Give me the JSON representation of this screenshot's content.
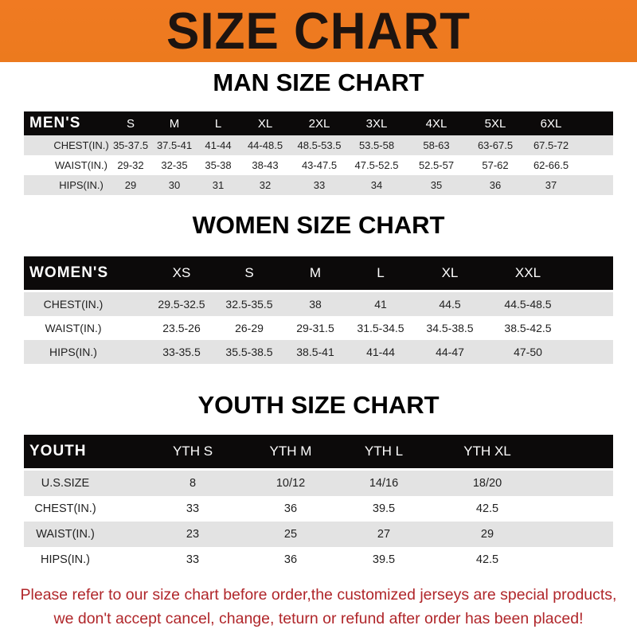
{
  "banner": {
    "title": "SIZE CHART",
    "color": "#ec7a1e"
  },
  "men": {
    "title": "MAN SIZE CHART",
    "header": [
      "MEN'S",
      "S",
      "M",
      "L",
      "XL",
      "2XL",
      "3XL",
      "4XL",
      "5XL",
      "6XL"
    ],
    "rows": [
      [
        "CHEST(IN.)",
        "35-37.5",
        "37.5-41",
        "41-44",
        "44-48.5",
        "48.5-53.5",
        "53.5-58",
        "58-63",
        "63-67.5",
        "67.5-72"
      ],
      [
        "WAIST(IN.)",
        "29-32",
        "32-35",
        "35-38",
        "38-43",
        "43-47.5",
        "47.5-52.5",
        "52.5-57",
        "57-62",
        "62-66.5"
      ],
      [
        "HIPS(IN.)",
        "29",
        "30",
        "31",
        "32",
        "33",
        "34",
        "35",
        "36",
        "37"
      ]
    ]
  },
  "women": {
    "title": "WOMEN SIZE CHART",
    "header": [
      "WOMEN'S",
      "XS",
      "S",
      "M",
      "L",
      "XL",
      "XXL"
    ],
    "rows": [
      [
        "CHEST(IN.)",
        "29.5-32.5",
        "32.5-35.5",
        "38",
        "41",
        "44.5",
        "44.5-48.5"
      ],
      [
        "WAIST(IN.)",
        "23.5-26",
        "26-29",
        "29-31.5",
        "31.5-34.5",
        "34.5-38.5",
        "38.5-42.5"
      ],
      [
        "HIPS(IN.)",
        "33-35.5",
        "35.5-38.5",
        "38.5-41",
        "41-44",
        "44-47",
        "47-50"
      ]
    ]
  },
  "youth": {
    "title": "YOUTH SIZE CHART",
    "header": [
      "YOUTH",
      "YTH S",
      "YTH M",
      "YTH L",
      "YTH XL"
    ],
    "rows": [
      [
        "U.S.SIZE",
        "8",
        "10/12",
        "14/16",
        "18/20"
      ],
      [
        "CHEST(IN.)",
        "33",
        "36",
        "39.5",
        "42.5"
      ],
      [
        "WAIST(IN.)",
        "23",
        "25",
        "27",
        "29"
      ],
      [
        "HIPS(IN.)",
        "33",
        "36",
        "39.5",
        "42.5"
      ]
    ]
  },
  "footer": {
    "line1": "Please refer to our size chart before order,the customized jerseys are special products,",
    "line2": "we don't accept cancel, change, teturn or refund after order has been placed!"
  }
}
